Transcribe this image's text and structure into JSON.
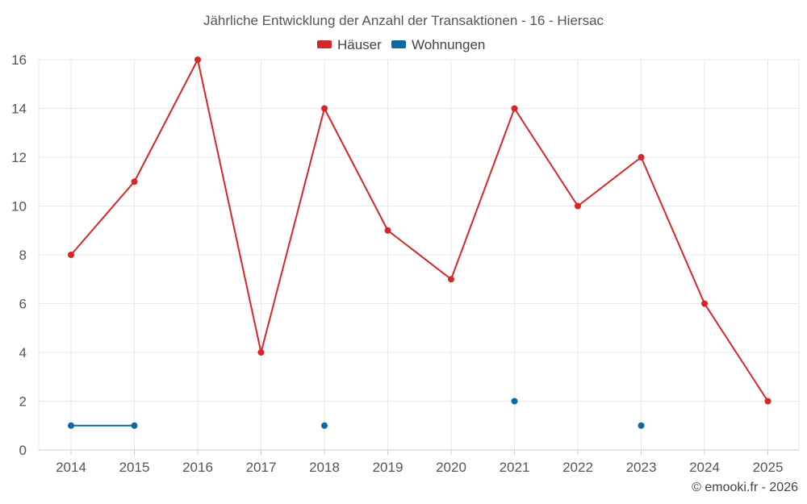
{
  "chart_data": {
    "type": "line",
    "title": "Jährliche Entwicklung der Anzahl der Transaktionen - 16 - Hiersac",
    "categories": [
      "2014",
      "2015",
      "2016",
      "2017",
      "2018",
      "2019",
      "2020",
      "2021",
      "2022",
      "2023",
      "2024",
      "2025"
    ],
    "series": [
      {
        "name": "Häuser",
        "color": "#d62728",
        "values": [
          8,
          11,
          16,
          4,
          14,
          9,
          7,
          14,
          10,
          12,
          6,
          2
        ]
      },
      {
        "name": "Wohnungen",
        "color": "#0a6aa1",
        "values": [
          1,
          1,
          null,
          null,
          1,
          null,
          null,
          2,
          null,
          1,
          null,
          null
        ]
      }
    ],
    "ylim": [
      0,
      16
    ],
    "yticks": [
      0,
      2,
      4,
      6,
      8,
      10,
      12,
      14,
      16
    ],
    "grid": true,
    "legend_position": "top-center",
    "xlabel": "",
    "ylabel": ""
  },
  "credit": "© emooki.fr - 2026"
}
